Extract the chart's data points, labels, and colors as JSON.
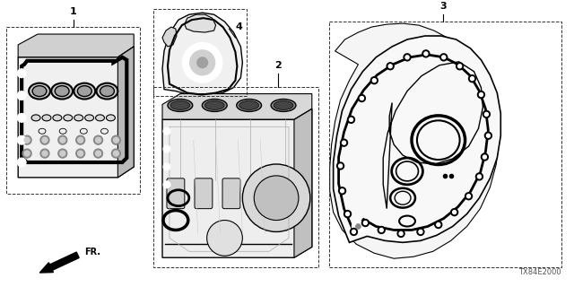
{
  "bg_color": "#ffffff",
  "line_color": "#000000",
  "gray_light": "#cccccc",
  "gray_mid": "#999999",
  "diagram_code": "TX84E2000",
  "fr_label": "FR.",
  "figsize": [
    6.4,
    3.2
  ],
  "dpi": 100
}
